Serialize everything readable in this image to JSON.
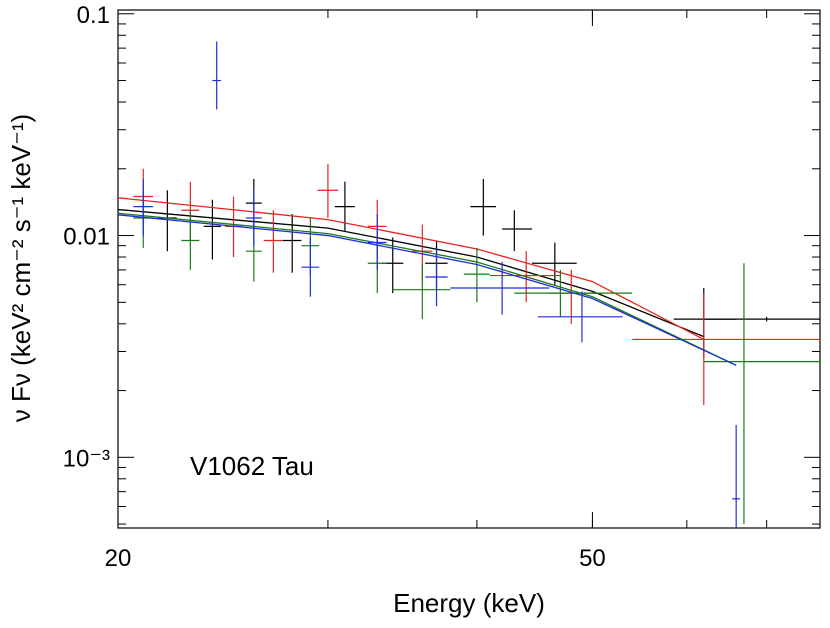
{
  "chart_data": {
    "type": "errorbar",
    "annotation": "V1062 Tau",
    "xlabel": "Energy (keV)",
    "ylabel": "ν Fν (keV² cm⁻² s⁻¹ keV⁻¹)",
    "xscale": "log",
    "yscale": "log",
    "xlim": [
      20,
      77.6
    ],
    "ylim": [
      0.00048,
      0.104
    ],
    "xticks": [
      20,
      50
    ],
    "yticks": [
      0.1,
      0.01,
      {
        "value": 0.001,
        "label": "10⁻³"
      }
    ],
    "series": [
      {
        "color": "#000000",
        "x": [
          22,
          24,
          26,
          28,
          31,
          34,
          37,
          40.5,
          43,
          46.5,
          62,
          70
        ],
        "values": [
          0.012,
          0.011,
          0.014,
          0.0095,
          0.0135,
          0.0075,
          0.0075,
          0.0135,
          0.0107,
          0.0075,
          0.0042,
          0.0042
        ],
        "x_low": [
          21.6,
          23.6,
          25.6,
          27.5,
          30.4,
          33.3,
          36.2,
          39.5,
          42,
          44.5,
          58.5,
          62
        ],
        "x_high": [
          22.4,
          24.4,
          26.4,
          28.5,
          31.6,
          34.7,
          37.8,
          41.5,
          44.5,
          48.5,
          66,
          77.6
        ],
        "y_low": [
          0.0085,
          0.0078,
          0.0105,
          0.0068,
          0.0105,
          0.0055,
          0.0057,
          0.01,
          0.0085,
          0.006,
          0.0028,
          0.0041
        ],
        "y_high": [
          0.016,
          0.0145,
          0.018,
          0.0125,
          0.0175,
          0.0098,
          0.0095,
          0.018,
          0.013,
          0.0093,
          0.0058,
          0.0043
        ],
        "model_x": [
          20,
          30,
          40,
          50,
          62
        ],
        "model_values": [
          0.0131,
          0.0108,
          0.008,
          0.0056,
          0.0035
        ]
      },
      {
        "color": "#e8231f",
        "x": [
          21,
          23,
          25,
          27,
          30,
          33,
          36,
          44,
          48,
          62
        ],
        "values": [
          0.015,
          0.013,
          0.011,
          0.0095,
          0.016,
          0.011,
          0.0085,
          0.0066,
          0.0055,
          0.0034
        ],
        "x_low": [
          20.6,
          22.6,
          24.6,
          26.5,
          29.4,
          32.4,
          35.3,
          41,
          46,
          54
        ],
        "x_high": [
          21.4,
          23.4,
          25.4,
          27.5,
          30.6,
          33.6,
          36.7,
          47,
          51,
          77.6
        ],
        "y_low": [
          0.011,
          0.0095,
          0.008,
          0.0068,
          0.012,
          0.0082,
          0.0062,
          0.005,
          0.004,
          0.00172
        ],
        "y_high": [
          0.02,
          0.0175,
          0.015,
          0.013,
          0.021,
          0.0145,
          0.0112,
          0.0085,
          0.007,
          0.0055
        ],
        "model_x": [
          20,
          30,
          40,
          50,
          62
        ],
        "model_values": [
          0.0148,
          0.0118,
          0.0087,
          0.0062,
          0.0034
        ]
      },
      {
        "color": "#1a7a1a",
        "x": [
          21,
          23,
          26,
          29,
          33,
          36,
          40,
          47,
          67
        ],
        "values": [
          0.012,
          0.0095,
          0.0085,
          0.009,
          0.0075,
          0.0057,
          0.0067,
          0.0055,
          0.0027
        ],
        "x_low": [
          20.6,
          22.6,
          25.6,
          28.5,
          32.4,
          34,
          39,
          43,
          62
        ],
        "x_high": [
          21.4,
          23.4,
          26.4,
          29.5,
          33.6,
          38,
          41,
          54,
          77.6
        ],
        "y_low": [
          0.0088,
          0.007,
          0.0062,
          0.0066,
          0.0055,
          0.0042,
          0.005,
          0.0043,
          0.0005
        ],
        "y_high": [
          0.016,
          0.013,
          0.0115,
          0.012,
          0.01,
          0.0075,
          0.0088,
          0.007,
          0.0075
        ],
        "model_x": [
          20,
          30,
          40,
          50,
          66
        ],
        "model_values": [
          0.0126,
          0.0102,
          0.0076,
          0.0053,
          0.0026
        ]
      },
      {
        "color": "#1f2fd8",
        "x": [
          21,
          24.2,
          26,
          29,
          33,
          37,
          42,
          49,
          66
        ],
        "values": [
          0.0135,
          0.05,
          0.012,
          0.0072,
          0.0093,
          0.0065,
          0.0058,
          0.0043,
          0.00065
        ],
        "x_low": [
          20.6,
          24,
          25.6,
          28.5,
          32.4,
          36.2,
          38,
          45,
          65.5
        ],
        "x_high": [
          21.4,
          24.4,
          26.4,
          29.5,
          33.6,
          37.8,
          46,
          53,
          66.5
        ],
        "y_low": [
          0.01,
          0.037,
          0.009,
          0.0053,
          0.007,
          0.0048,
          0.0044,
          0.0033,
          0.00048
        ],
        "y_high": [
          0.018,
          0.075,
          0.016,
          0.0098,
          0.0125,
          0.0088,
          0.0076,
          0.0056,
          0.0014
        ],
        "model_x": [
          20,
          30,
          40,
          50,
          66
        ],
        "model_values": [
          0.0124,
          0.01,
          0.0074,
          0.0052,
          0.0026
        ]
      }
    ]
  }
}
